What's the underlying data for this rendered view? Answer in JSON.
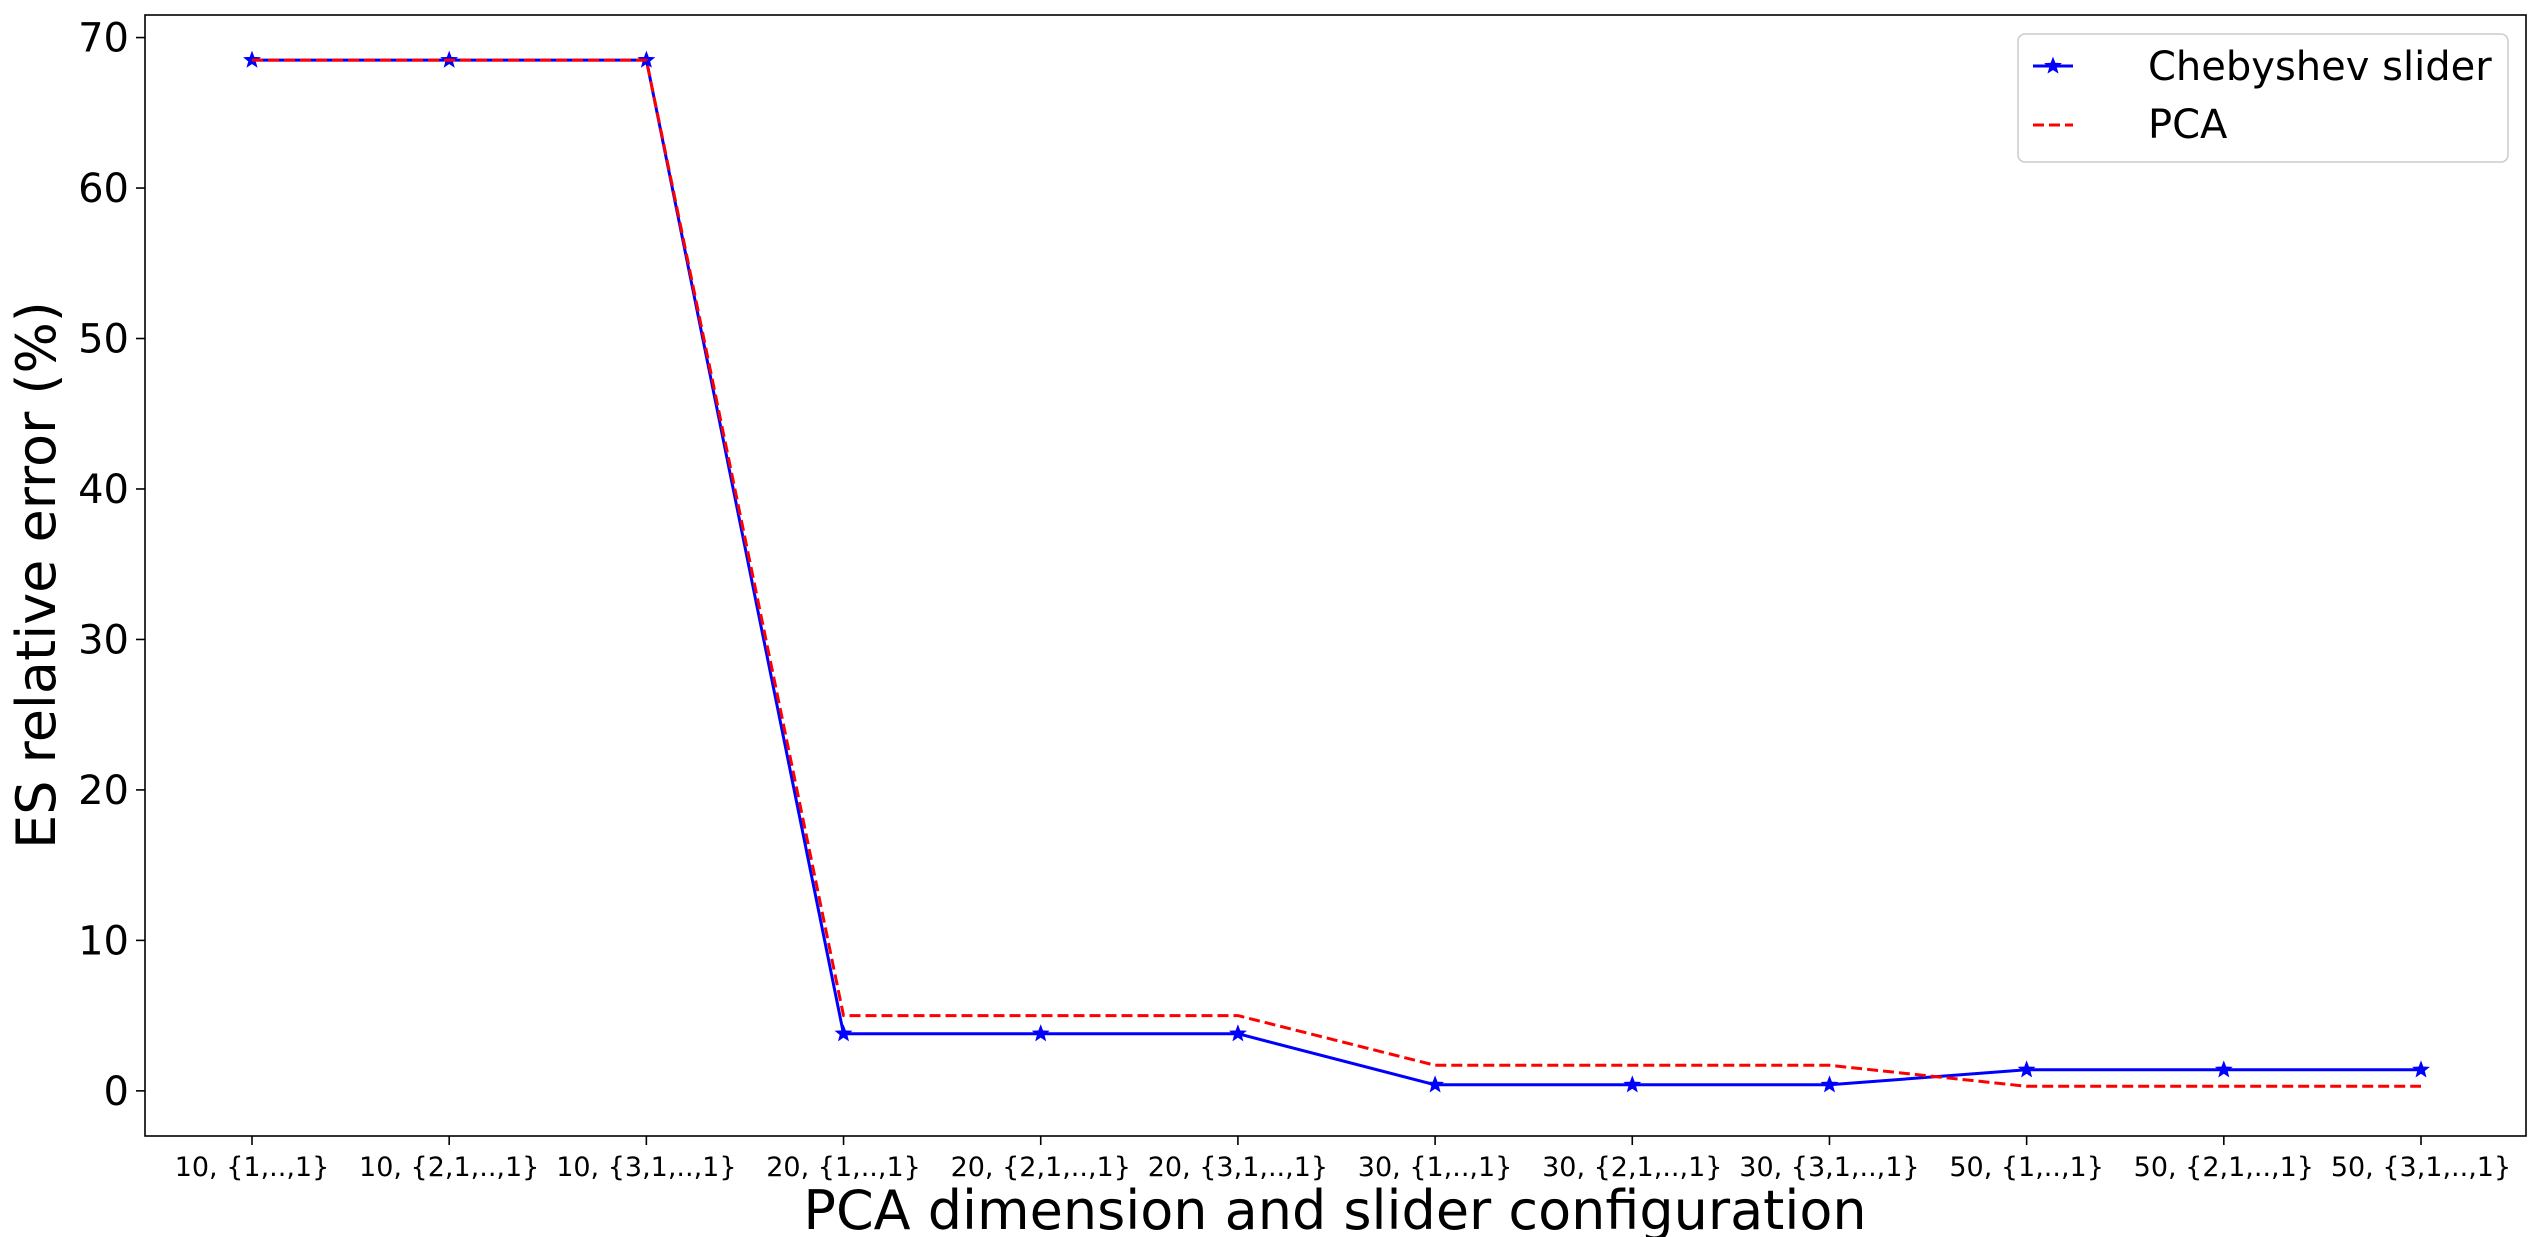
{
  "chart_data": {
    "type": "line",
    "xlabel": "PCA dimension and slider configuration",
    "ylabel": "ES relative error (%)",
    "categories": [
      "10, {1,..,1}",
      "10, {2,1,..,1}",
      "10, {3,1,..,1}",
      "20, {1,..,1}",
      "20, {2,1,..,1}",
      "20, {3,1,..,1}",
      "30, {1,..,1}",
      "30, {2,1,..,1}",
      "30, {3,1,..,1}",
      "50, {1,..,1}",
      "50, {2,1,..,1}",
      "50, {3,1,..,1}"
    ],
    "ylim": [
      -3,
      71.5
    ],
    "yticks": [
      0,
      10,
      20,
      30,
      40,
      50,
      60,
      70
    ],
    "grid": false,
    "legend_position": "top-right",
    "series": [
      {
        "name": "Chebyshev slider",
        "color": "#0000ff",
        "style": "solid",
        "marker": "star",
        "values": [
          68.5,
          68.5,
          68.5,
          3.8,
          3.8,
          3.8,
          0.4,
          0.4,
          0.4,
          1.4,
          1.4,
          1.4
        ]
      },
      {
        "name": "PCA",
        "color": "#ff0000",
        "style": "dashed",
        "marker": "none",
        "values": [
          68.5,
          68.5,
          68.5,
          5.0,
          5.0,
          5.0,
          1.7,
          1.7,
          1.7,
          0.3,
          0.3,
          0.3
        ]
      }
    ]
  }
}
